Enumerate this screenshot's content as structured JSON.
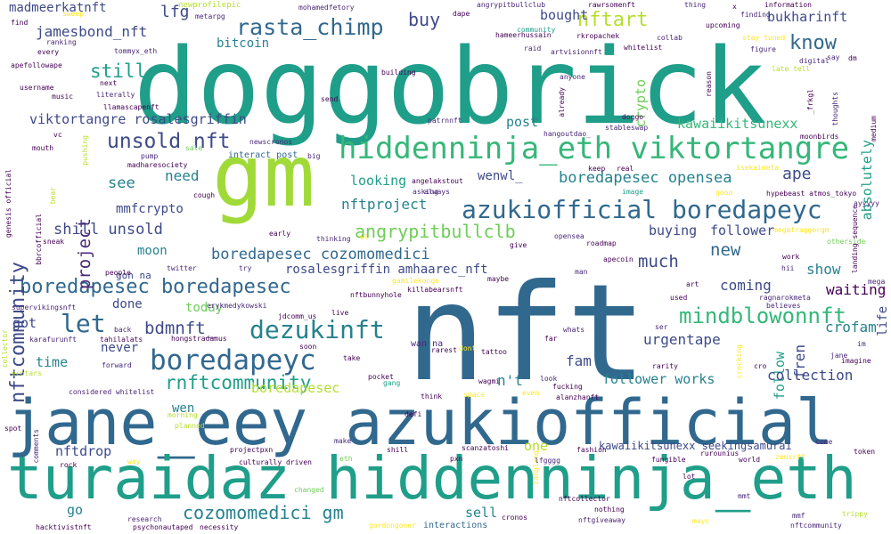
{
  "palette": {
    "teal": "#1f9e89",
    "blue": "#31688e",
    "indigo": "#3e4a89",
    "purple": "#482878",
    "violet": "#440154",
    "green": "#35b779",
    "lime": "#b5de2b",
    "yellow": "#fde725",
    "sea": "#26828e",
    "mint": "#6ece58"
  },
  "words": [
    {
      "text": "doggobrick",
      "color": "#1f9e89"
    },
    {
      "text": "nft",
      "color": "#31688e"
    },
    {
      "text": "gm",
      "color": "#a0da39"
    },
    {
      "text": "jane_eey azukiofficial",
      "color": "#31688e"
    },
    {
      "text": "turaidaz hiddenninja_eth",
      "color": "#1f9e89"
    },
    {
      "text": "hiddenninja_eth viktortangre",
      "color": "#35b779"
    },
    {
      "text": "azukiofficial boredapeyc",
      "color": "#31688e"
    },
    {
      "text": "boredapeyc",
      "color": "#31688e"
    },
    {
      "text": "boredapesec boredapesec",
      "color": "#31688e"
    },
    {
      "text": "dezukinft",
      "color": "#26828e"
    },
    {
      "text": "mindblowonnft",
      "color": "#35b779"
    },
    {
      "text": "rasta_chimp",
      "color": "#31688e"
    },
    {
      "text": "nftcommunity",
      "color": "#3e4a89"
    },
    {
      "text": "unsold nft",
      "color": "#3e4a89"
    },
    {
      "text": "let",
      "color": "#31688e"
    },
    {
      "text": "rnftcommunity",
      "color": "#1f9e89"
    },
    {
      "text": "angrypitbullclb",
      "color": "#6ece58"
    },
    {
      "text": "cozomomedici gm",
      "color": "#26828e"
    },
    {
      "text": "boredapesec opensea",
      "color": "#26828e"
    },
    {
      "text": "boredapesec cozomomedici",
      "color": "#31688e"
    },
    {
      "text": "nftart",
      "color": "#b5de2b"
    },
    {
      "text": "madmeerkatnft",
      "color": "#3e4a89"
    },
    {
      "text": "jamesbond_nft",
      "color": "#3e4a89"
    },
    {
      "text": "viktortangre rosalesgriffin",
      "color": "#3e4a89"
    },
    {
      "text": "kawaiikitsunexx",
      "color": "#35b779"
    },
    {
      "text": "bukharinft",
      "color": "#3e4a89"
    },
    {
      "text": "know",
      "color": "#31688e"
    },
    {
      "text": "buy",
      "color": "#3e4a89"
    },
    {
      "text": "lfg",
      "color": "#3e4a89"
    },
    {
      "text": "bitcoin",
      "color": "#26828e"
    },
    {
      "text": "still",
      "color": "#1f9e89"
    },
    {
      "text": "project",
      "color": "#482878"
    },
    {
      "text": "see",
      "color": "#26828e"
    },
    {
      "text": "need",
      "color": "#26828e"
    },
    {
      "text": "mmfcrypto",
      "color": "#3e4a89"
    },
    {
      "text": "shill unsold",
      "color": "#3e4a89"
    },
    {
      "text": "looking",
      "color": "#1f9e89"
    },
    {
      "text": "wenwl_",
      "color": "#3e4a89"
    },
    {
      "text": "nftproject",
      "color": "#26828e"
    },
    {
      "text": "ape",
      "color": "#3e4a89"
    },
    {
      "text": "absolutely",
      "color": "#1f9e89"
    },
    {
      "text": "crypto",
      "color": "#6ece58"
    },
    {
      "text": "bought",
      "color": "#3e4a89"
    },
    {
      "text": "post",
      "color": "#26828e"
    },
    {
      "text": "moon",
      "color": "#26828e"
    },
    {
      "text": "much",
      "color": "#3e4a89"
    },
    {
      "text": "buying",
      "color": "#3e4a89"
    },
    {
      "text": "follower",
      "color": "#3e4a89"
    },
    {
      "text": "new",
      "color": "#31688e"
    },
    {
      "text": "rosalesgriffin amhaarec_nft",
      "color": "#3e4a89"
    },
    {
      "text": "coming",
      "color": "#3e4a89"
    },
    {
      "text": "show",
      "color": "#26828e"
    },
    {
      "text": "bdmnft_",
      "color": "#3e4a89"
    },
    {
      "text": "done",
      "color": "#3e4a89"
    },
    {
      "text": "today",
      "color": "#6ece58"
    },
    {
      "text": "got",
      "color": "#3e4a89"
    },
    {
      "text": "time",
      "color": "#26828e"
    },
    {
      "text": "never",
      "color": "#3e4a89"
    },
    {
      "text": "urgentape",
      "color": "#3e4a89"
    },
    {
      "text": "fam",
      "color": "#3e4a89"
    },
    {
      "text": "fren",
      "color": "#3e4a89"
    },
    {
      "text": "follow",
      "color": "#1f9e89"
    },
    {
      "text": "crofam",
      "color": "#26828e"
    },
    {
      "text": "life",
      "color": "#3e4a89"
    },
    {
      "text": "follower works",
      "color": "#26828e"
    },
    {
      "text": "collection",
      "color": "#3e4a89"
    },
    {
      "text": "n't",
      "color": "#26828e"
    },
    {
      "text": "boredapesec",
      "color": "#b5de2b"
    },
    {
      "text": "wen",
      "color": "#26828e"
    },
    {
      "text": "nftdrop",
      "color": "#3e4a89"
    },
    {
      "text": "one",
      "color": "#b5de2b"
    },
    {
      "text": "go",
      "color": "#26828e"
    },
    {
      "text": "sell",
      "color": "#26828e"
    },
    {
      "text": "kawaiikitsunexx seekingsamurai",
      "color": "#3e4a89"
    },
    {
      "text": "gon na",
      "color": "#3e4a89"
    },
    {
      "text": "sweep",
      "color": "#fde725"
    },
    {
      "text": "newprofilepic",
      "color": "#b5de2b"
    },
    {
      "text": "mohamedfetory",
      "color": "#482878"
    },
    {
      "text": "angrypitbullclub",
      "color": "#482878"
    },
    {
      "text": "rawrsomenft",
      "color": "#440154"
    },
    {
      "text": "thing",
      "color": "#482878"
    },
    {
      "text": "information",
      "color": "#440154"
    },
    {
      "text": "finding",
      "color": "#482878"
    },
    {
      "text": "upcoming",
      "color": "#440154"
    },
    {
      "text": "metarpg",
      "color": "#482878"
    },
    {
      "text": "dape",
      "color": "#440154"
    },
    {
      "text": "community",
      "color": "#1f9e89"
    },
    {
      "text": "hameerhussain",
      "color": "#440154"
    },
    {
      "text": "rkropachek",
      "color": "#440154"
    },
    {
      "text": "collab",
      "color": "#482878"
    },
    {
      "text": "whitelist",
      "color": "#440154"
    },
    {
      "text": "stay tuned",
      "color": "#fde725"
    },
    {
      "text": "figure",
      "color": "#482878"
    },
    {
      "text": "late tell",
      "color": "#b5de2b"
    },
    {
      "text": "digital",
      "color": "#482878"
    },
    {
      "text": "say",
      "color": "#482878"
    },
    {
      "text": "dm",
      "color": "#440154"
    },
    {
      "text": "raid",
      "color": "#482878"
    },
    {
      "text": "artvisionnft",
      "color": "#482878"
    },
    {
      "text": "ranking",
      "color": "#482878"
    },
    {
      "text": "every",
      "color": "#440154"
    },
    {
      "text": "tommyx_eth",
      "color": "#482878"
    },
    {
      "text": "find",
      "color": "#440154"
    },
    {
      "text": "apefollowape",
      "color": "#440154"
    },
    {
      "text": "building",
      "color": "#440154"
    },
    {
      "text": "anyone",
      "color": "#482878"
    },
    {
      "text": "username",
      "color": "#440154"
    },
    {
      "text": "next",
      "color": "#440154"
    },
    {
      "text": "music",
      "color": "#440154"
    },
    {
      "text": "literally",
      "color": "#482878"
    },
    {
      "text": "send",
      "color": "#440154"
    },
    {
      "text": "already",
      "color": "#440154"
    },
    {
      "text": "llamascapenft",
      "color": "#440154"
    },
    {
      "text": "patrnnft",
      "color": "#482878"
    },
    {
      "text": "doggo",
      "color": "#440154"
    },
    {
      "text": "stableswap",
      "color": "#482878"
    },
    {
      "text": "thoughts",
      "color": "#482878"
    },
    {
      "text": "medium",
      "color": "#440154"
    },
    {
      "text": "moonbirds",
      "color": "#440154"
    },
    {
      "text": "hangoutdao_",
      "color": "#482878"
    },
    {
      "text": "newscronos",
      "color": "#482878"
    },
    {
      "text": "pump",
      "color": "#482878"
    },
    {
      "text": "interact post",
      "color": "#31688e"
    },
    {
      "text": "big",
      "color": "#482878"
    },
    {
      "text": "madharesociety",
      "color": "#440154"
    },
    {
      "text": "sale",
      "color": "#6ece58"
    },
    {
      "text": "pushing",
      "color": "#b5de2b"
    },
    {
      "text": "mouth",
      "color": "#440154"
    },
    {
      "text": "vc",
      "color": "#440154"
    },
    {
      "text": "genesis official",
      "color": "#440154"
    },
    {
      "text": "bear",
      "color": "#b5de2b"
    },
    {
      "text": "keep",
      "color": "#440154"
    },
    {
      "text": "real",
      "color": "#440154"
    },
    {
      "text": "isekaimeta",
      "color": "#fde725"
    },
    {
      "text": "hypebeast atmos_tokyo",
      "color": "#440154"
    },
    {
      "text": "angelakstout",
      "color": "#440154"
    },
    {
      "text": "asking",
      "color": "#482878"
    },
    {
      "text": "always",
      "color": "#482878"
    },
    {
      "text": "image",
      "color": "#1f9e89"
    },
    {
      "text": "gooo",
      "color": "#fde725"
    },
    {
      "text": "ayyyyy",
      "color": "#482878"
    },
    {
      "text": "cough",
      "color": "#440154"
    },
    {
      "text": "early",
      "color": "#440154"
    },
    {
      "text": "thinking",
      "color": "#482878"
    },
    {
      "text": "wl",
      "color": "#fde725"
    },
    {
      "text": "megafraggergm",
      "color": "#fde725"
    },
    {
      "text": "otherside",
      "color": "#6ece58"
    },
    {
      "text": "landing sequence",
      "color": "#440154"
    },
    {
      "text": "sneak",
      "color": "#440154"
    },
    {
      "text": "give",
      "color": "#440154"
    },
    {
      "text": "opensea",
      "color": "#482878"
    },
    {
      "text": "roadmap",
      "color": "#440154"
    },
    {
      "text": "work",
      "color": "#440154"
    },
    {
      "text": "hii",
      "color": "#482878"
    },
    {
      "text": "apecoin",
      "color": "#440154"
    },
    {
      "text": "man",
      "color": "#482878"
    },
    {
      "text": "twitter",
      "color": "#482878"
    },
    {
      "text": "try",
      "color": "#482878"
    },
    {
      "text": "gamilekonge",
      "color": "#fde725"
    },
    {
      "text": "killabearsnft",
      "color": "#440154"
    },
    {
      "text": "maybe",
      "color": "#440154"
    },
    {
      "text": "people",
      "color": "#440154"
    },
    {
      "text": "bbrcofficial",
      "color": "#440154"
    },
    {
      "text": "used",
      "color": "#440154"
    },
    {
      "text": "believes",
      "color": "#482878"
    },
    {
      "text": "ragnarokmeta",
      "color": "#482878"
    },
    {
      "text": "waiting",
      "color": "#440154"
    },
    {
      "text": "mega",
      "color": "#482878"
    },
    {
      "text": "supervikingsnft",
      "color": "#482878"
    },
    {
      "text": "erykmedykowski",
      "color": "#482878"
    },
    {
      "text": "art",
      "color": "#440154"
    },
    {
      "text": "nftbunnyhole",
      "color": "#440154"
    },
    {
      "text": "jdcomm_us",
      "color": "#440154"
    },
    {
      "text": "live",
      "color": "#440154"
    },
    {
      "text": "back",
      "color": "#482878"
    },
    {
      "text": "karafurunft",
      "color": "#482878"
    },
    {
      "text": "tahilalats",
      "color": "#440154"
    },
    {
      "text": "hongstradamus",
      "color": "#440154"
    },
    {
      "text": "soon",
      "color": "#440154"
    },
    {
      "text": "ser",
      "color": "#482878"
    },
    {
      "text": "whats",
      "color": "#482878"
    },
    {
      "text": "far",
      "color": "#440154"
    },
    {
      "text": "im",
      "color": "#482878"
    },
    {
      "text": "jane",
      "color": "#482878"
    },
    {
      "text": "imagine",
      "color": "#440154"
    },
    {
      "text": "rarest",
      "color": "#440154"
    },
    {
      "text": "tattoo",
      "color": "#440154"
    },
    {
      "text": "take",
      "color": "#440154"
    },
    {
      "text": "forward",
      "color": "#482878"
    },
    {
      "text": "rarity",
      "color": "#440154"
    },
    {
      "text": "crocking",
      "color": "#fde725"
    },
    {
      "text": "cro",
      "color": "#440154"
    },
    {
      "text": "ecotars",
      "color": "#b5de2b"
    },
    {
      "text": "collector",
      "color": "#b5de2b"
    },
    {
      "text": "considered whitelist",
      "color": "#482878"
    },
    {
      "text": "wan na",
      "color": "#482878"
    },
    {
      "text": "dont",
      "color": "#fde725"
    },
    {
      "text": "pocket",
      "color": "#440154"
    },
    {
      "text": "gang",
      "color": "#1f9e89"
    },
    {
      "text": "wagmi",
      "color": "#440154"
    },
    {
      "text": "look",
      "color": "#482878"
    },
    {
      "text": "fucking",
      "color": "#440154"
    },
    {
      "text": "think",
      "color": "#440154"
    },
    {
      "text": "space",
      "color": "#fde725"
    },
    {
      "text": "even",
      "color": "#fde725"
    },
    {
      "text": "alanzhanft",
      "color": "#440154"
    },
    {
      "text": "spot",
      "color": "#440154"
    },
    {
      "text": "morning",
      "color": "#b5de2b"
    },
    {
      "text": "planned",
      "color": "#b5de2b"
    },
    {
      "text": "defi",
      "color": "#440154"
    },
    {
      "text": "comments",
      "color": "#482878"
    },
    {
      "text": "make",
      "color": "#482878"
    },
    {
      "text": "projectpxn",
      "color": "#440154"
    },
    {
      "text": "culturally driven",
      "color": "#440154"
    },
    {
      "text": "shill",
      "color": "#440154"
    },
    {
      "text": "scanzatoshi",
      "color": "#440154"
    },
    {
      "text": "zanglang",
      "color": "#fde725"
    },
    {
      "text": "fashion",
      "color": "#440154"
    },
    {
      "text": "lfgggg",
      "color": "#482878"
    },
    {
      "text": "rurounius",
      "color": "#440154"
    },
    {
      "text": "fungible",
      "color": "#440154"
    },
    {
      "text": "come",
      "color": "#482878"
    },
    {
      "text": "token",
      "color": "#440154"
    },
    {
      "text": "rock",
      "color": "#440154"
    },
    {
      "text": "way",
      "color": "#fde725"
    },
    {
      "text": "eth",
      "color": "#6ece58"
    },
    {
      "text": "pxn",
      "color": "#440154"
    },
    {
      "text": "lot",
      "color": "#440154"
    },
    {
      "text": "world",
      "color": "#440154"
    },
    {
      "text": "zeusrff",
      "color": "#fde725"
    },
    {
      "text": "changed",
      "color": "#6ece58"
    },
    {
      "text": "mmt",
      "color": "#482878"
    },
    {
      "text": "hacktivistnft",
      "color": "#440154"
    },
    {
      "text": "research",
      "color": "#482878"
    },
    {
      "text": "psychonautaped",
      "color": "#440154"
    },
    {
      "text": "necessity",
      "color": "#440154"
    },
    {
      "text": "gordongoner",
      "color": "#fde725"
    },
    {
      "text": "interactions",
      "color": "#31688e"
    },
    {
      "text": "cronos",
      "color": "#440154"
    },
    {
      "text": "nftcollector",
      "color": "#440154"
    },
    {
      "text": "nothing",
      "color": "#440154"
    },
    {
      "text": "nftgiveaway",
      "color": "#482878"
    },
    {
      "text": "mayc",
      "color": "#fde725"
    },
    {
      "text": "mmf",
      "color": "#482878"
    },
    {
      "text": "nftcommunity",
      "color": "#482878"
    },
    {
      "text": "trippy",
      "color": "#b5de2b"
    },
    {
      "text": "reason",
      "color": "#440154"
    },
    {
      "text": "_frkgl",
      "color": "#440154"
    },
    {
      "text": "x",
      "color": "#440154"
    }
  ]
}
